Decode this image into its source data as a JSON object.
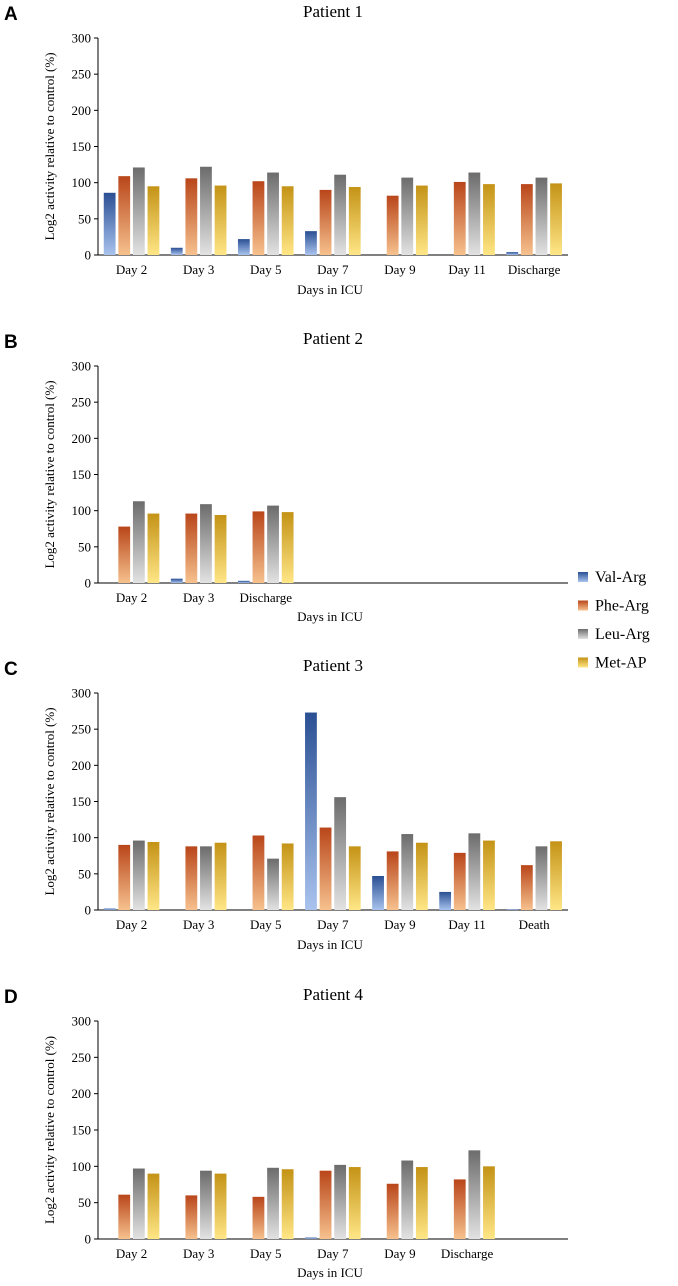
{
  "chart_data": [
    {
      "type": "bar",
      "panel": "A",
      "title": "Patient 1",
      "xlabel": "Days in ICU",
      "ylabel": "Log2 activity relative to control (%)",
      "ylim": [
        0,
        300
      ],
      "yticks": [
        0,
        50,
        100,
        150,
        200,
        250,
        300
      ],
      "grid": false,
      "categories": [
        "Day 2",
        "Day 3",
        "Day 5",
        "Day 7",
        "Day 9",
        "Day 11",
        "Discharge"
      ],
      "series": [
        {
          "name": "Val-Arg",
          "values": [
            86,
            10,
            22,
            33,
            0,
            0,
            4
          ]
        },
        {
          "name": "Phe-Arg",
          "values": [
            109,
            106,
            102,
            90,
            82,
            101,
            98
          ]
        },
        {
          "name": "Leu-Arg",
          "values": [
            121,
            122,
            114,
            111,
            107,
            114,
            107
          ]
        },
        {
          "name": "Met-AP",
          "values": [
            95,
            96,
            95,
            94,
            96,
            98,
            99
          ]
        }
      ]
    },
    {
      "type": "bar",
      "panel": "B",
      "title": "Patient 2",
      "xlabel": "Days in ICU",
      "ylabel": "Log2 activity relative to control (%)",
      "ylim": [
        0,
        300
      ],
      "yticks": [
        0,
        50,
        100,
        150,
        200,
        250,
        300
      ],
      "grid": false,
      "categories": [
        "Day 2",
        "Day 3",
        "Discharge"
      ],
      "series": [
        {
          "name": "Val-Arg",
          "values": [
            0,
            6,
            3
          ]
        },
        {
          "name": "Phe-Arg",
          "values": [
            78,
            96,
            99
          ]
        },
        {
          "name": "Leu-Arg",
          "values": [
            113,
            109,
            107
          ]
        },
        {
          "name": "Met-AP",
          "values": [
            96,
            94,
            98
          ]
        }
      ]
    },
    {
      "type": "bar",
      "panel": "C",
      "title": "Patient 3",
      "xlabel": "Days in ICU",
      "ylabel": "Log2 activity relative to control (%)",
      "ylim": [
        0,
        300
      ],
      "yticks": [
        0,
        50,
        100,
        150,
        200,
        250,
        300
      ],
      "grid": false,
      "categories": [
        "Day 2",
        "Day 3",
        "Day 5",
        "Day 7",
        "Day 9",
        "Day 11",
        "Death"
      ],
      "series": [
        {
          "name": "Val-Arg",
          "values": [
            2,
            0,
            0,
            273,
            47,
            25,
            1
          ]
        },
        {
          "name": "Phe-Arg",
          "values": [
            90,
            88,
            103,
            114,
            81,
            79,
            62
          ]
        },
        {
          "name": "Leu-Arg",
          "values": [
            96,
            88,
            71,
            156,
            105,
            106,
            88
          ]
        },
        {
          "name": "Met-AP",
          "values": [
            94,
            93,
            92,
            88,
            93,
            96,
            95
          ]
        }
      ]
    },
    {
      "type": "bar",
      "panel": "D",
      "title": "Patient 4",
      "xlabel": "Days in ICU",
      "ylabel": "Log2 activity relative to control (%)",
      "ylim": [
        0,
        300
      ],
      "yticks": [
        0,
        50,
        100,
        150,
        200,
        250,
        300
      ],
      "grid": false,
      "categories": [
        "Day 2",
        "Day 3",
        "Day 5",
        "Day 7",
        "Day 9",
        "Discharge"
      ],
      "series": [
        {
          "name": "Val-Arg",
          "values": [
            0,
            0,
            0,
            2,
            0,
            0
          ]
        },
        {
          "name": "Phe-Arg",
          "values": [
            61,
            60,
            58,
            94,
            76,
            82
          ]
        },
        {
          "name": "Leu-Arg",
          "values": [
            97,
            94,
            98,
            102,
            108,
            122
          ]
        },
        {
          "name": "Met-AP",
          "values": [
            90,
            90,
            96,
            99,
            99,
            100
          ]
        }
      ]
    }
  ],
  "legend": {
    "placement": "right",
    "entries": [
      "Val-Arg",
      "Phe-Arg",
      "Leu-Arg",
      "Met-AP"
    ]
  },
  "colors": {
    "Val-Arg": [
      "#2a4f93",
      "#a9c3ee"
    ],
    "Phe-Arg": [
      "#b9461a",
      "#f6c18e"
    ],
    "Leu-Arg": [
      "#6c6c6c",
      "#e2e2e2"
    ],
    "Met-AP": [
      "#c49316",
      "#ffe686"
    ]
  }
}
